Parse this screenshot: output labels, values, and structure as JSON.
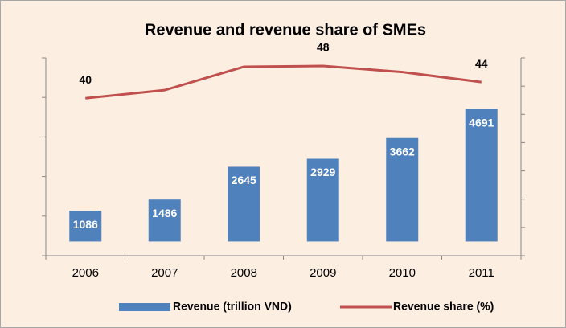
{
  "chart_data": {
    "type": "bar_line",
    "title": "Revenue and revenue share of SMEs",
    "categories": [
      "2006",
      "2007",
      "2008",
      "2009",
      "2010",
      "2011"
    ],
    "series": [
      {
        "name": "Revenue (trillion VND)",
        "color": "#4f81bd",
        "values": [
          1086,
          1486,
          2645,
          2929,
          3662,
          4691
        ]
      },
      {
        "name": "Revenue share (%)",
        "color": "#c0504d",
        "axis": "y2",
        "values": [
          40,
          42,
          47.8,
          48,
          46.5,
          44
        ],
        "value_labels": [
          40,
          null,
          null,
          48,
          null,
          44
        ]
      }
    ],
    "ylim": [
      -500,
      6500
    ],
    "yticks": [
      -500,
      900,
      2300,
      3700,
      5100,
      6500
    ],
    "y2lim": [
      1,
      50
    ],
    "y2ticks": [
      1,
      8,
      15,
      22,
      29,
      36,
      43,
      50
    ],
    "legend": "bottom"
  }
}
